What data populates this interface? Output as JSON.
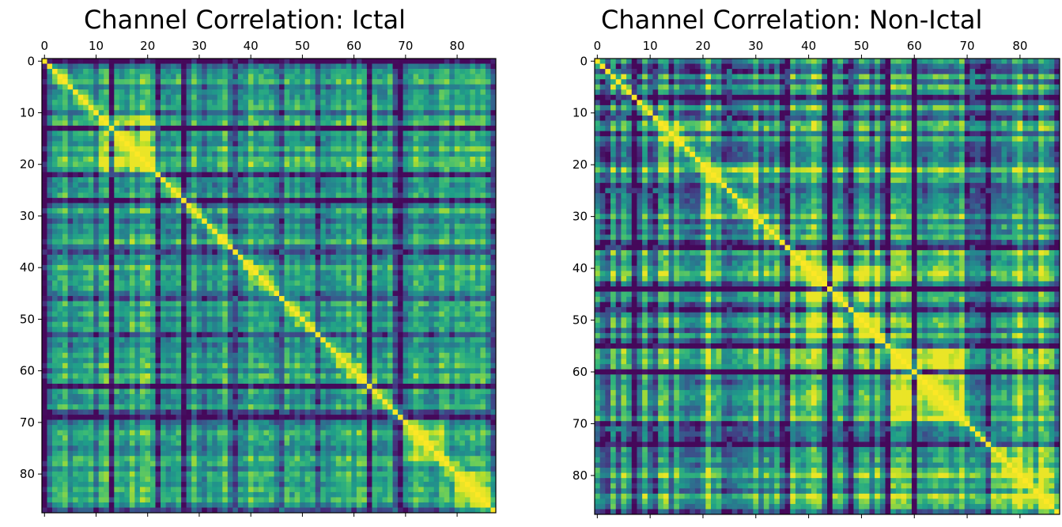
{
  "charts": [
    {
      "title": "Channel Correlation: Ictal",
      "xticks": [
        "0",
        "10",
        "20",
        "30",
        "40",
        "50",
        "60",
        "70",
        "80"
      ],
      "yticks": [
        "0",
        "10",
        "20",
        "30",
        "40",
        "50",
        "60",
        "70",
        "80"
      ]
    },
    {
      "title": "Channel Correlation: Non-Ictal",
      "xticks": [
        "0",
        "10",
        "20",
        "30",
        "40",
        "50",
        "60",
        "70",
        "80"
      ],
      "yticks": [
        "0",
        "10",
        "20",
        "30",
        "40",
        "50",
        "60",
        "70",
        "80"
      ]
    }
  ],
  "chart_data": [
    {
      "type": "heatmap",
      "title": "Channel Correlation: Ictal",
      "n_channels": 88,
      "colormap": "viridis",
      "xlim": [
        -0.5,
        87.5
      ],
      "ylim": [
        87.5,
        -0.5
      ],
      "xaxis_position": "top",
      "grid": false,
      "legend": "none",
      "diagonal_value": 1.0,
      "value_range": [
        0,
        1
      ],
      "low_correlation_channels": [
        0,
        13,
        22,
        27,
        37,
        46,
        53,
        63,
        68,
        69,
        87
      ],
      "high_correlation_blocks": [
        [
          11,
          22
        ],
        [
          70,
          77
        ],
        [
          80,
          87
        ]
      ],
      "cells": "88x88 symmetric correlation matrix; values approximated"
    },
    {
      "type": "heatmap",
      "title": "Channel Correlation: Non-Ictal",
      "n_channels": 88,
      "colormap": "viridis",
      "xlim": [
        -0.5,
        87.5
      ],
      "ylim": [
        87.5,
        -0.5
      ],
      "xaxis_position": "top",
      "grid": false,
      "legend": "none",
      "diagonal_value": 1.0,
      "value_range": [
        0,
        1
      ],
      "low_correlation_channels": [
        2,
        4,
        7,
        11,
        25,
        36,
        44,
        48,
        55,
        60,
        71,
        74
      ],
      "high_correlation_blocks": [
        [
          11,
          20
        ],
        [
          20,
          30
        ],
        [
          40,
          55
        ],
        [
          55,
          70
        ],
        [
          70,
          87
        ]
      ],
      "cells": "88x88 symmetric correlation matrix; values approximated"
    }
  ]
}
